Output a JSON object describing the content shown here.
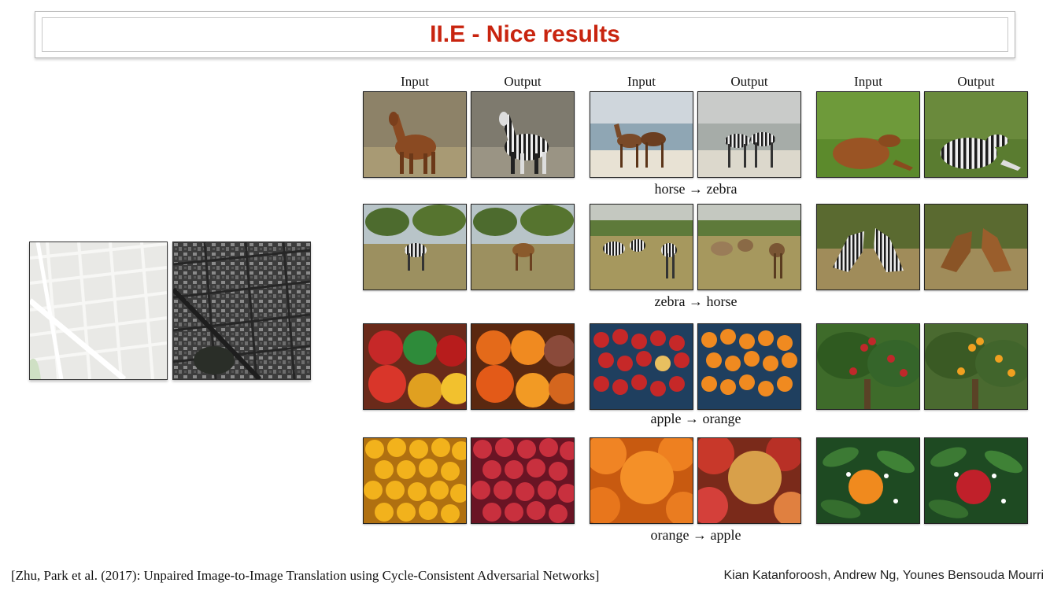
{
  "slide": {
    "title": "II.E - Nice results",
    "column_headers": [
      "Input",
      "Output",
      "Input",
      "Output",
      "Input",
      "Output"
    ],
    "captions": [
      "horse → zebra",
      "zebra → horse",
      "apple → orange",
      "orange → apple"
    ],
    "citation": "[Zhu, Park et al. (2017): Unpaired Image-to-Image Translation using Cycle-Consistent Adversarial Networks]",
    "authors": "Kian Katanforoosh, Andrew Ng, Younes Bensouda Mourri"
  },
  "colors": {
    "title": "#c8240f"
  },
  "images": {
    "map_input": "map-image",
    "map_output": "aerial-photo-image",
    "rows": [
      [
        "horse-photo",
        "zebra-photo",
        "horses-beach-photo",
        "zebras-beach-photo",
        "horse-grass-photo",
        "zebra-grass-photo"
      ],
      [
        "zebra-savanna-photo",
        "horse-savanna-photo",
        "zebra-herd-photo",
        "horse-herd-photo",
        "zebras-fighting-photo",
        "horses-fighting-photo"
      ],
      [
        "apples-photo",
        "oranges-photo",
        "apples-crate-photo",
        "oranges-crate-photo",
        "apple-tree-photo",
        "orange-tree-photo"
      ],
      [
        "oranges-pile-photo",
        "apples-pile-photo",
        "oranges-closeup-photo",
        "apples-closeup-photo",
        "orange-branch-photo",
        "apple-branch-photo"
      ]
    ]
  }
}
